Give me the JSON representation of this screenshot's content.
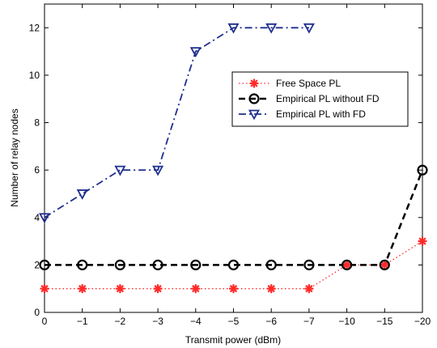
{
  "chart_data": {
    "type": "line",
    "title": "",
    "xlabel": "Transmit power (dBm)",
    "ylabel": "Number of relay nodes",
    "categories": [
      "0",
      "−1",
      "−2",
      "−3",
      "−4",
      "−5",
      "−6",
      "−7",
      "−10",
      "−15",
      "−20"
    ],
    "ylim": [
      0,
      13
    ],
    "yticks": [
      0,
      2,
      4,
      6,
      8,
      10,
      12
    ],
    "grid": false,
    "legend_position": "top-right",
    "series": [
      {
        "name": "Free Space PL",
        "values": [
          1,
          1,
          1,
          1,
          1,
          1,
          1,
          1,
          2,
          2,
          3
        ],
        "color": "#ff2a2a",
        "line_style": "dotted",
        "marker": "asterisk"
      },
      {
        "name": "Empirical PL without FD",
        "values": [
          2,
          2,
          2,
          2,
          2,
          2,
          2,
          2,
          2,
          2,
          6
        ],
        "color": "#000000",
        "line_style": "dashed",
        "marker": "circle"
      },
      {
        "name": "Empirical PL with FD",
        "values": [
          4,
          5,
          6,
          6,
          11,
          12,
          12,
          12,
          null,
          null,
          null
        ],
        "color": "#1f2f8f",
        "line_style": "dash-dot",
        "marker": "triangle-down"
      }
    ]
  }
}
